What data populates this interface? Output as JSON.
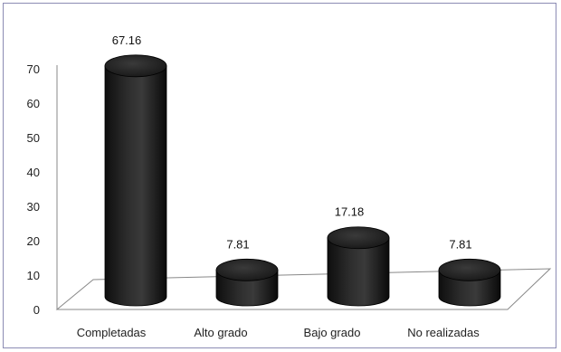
{
  "chart_data": {
    "type": "bar",
    "style": "3d-cylinder",
    "title": "",
    "xlabel": "",
    "ylabel": "",
    "categories": [
      "Completadas",
      "Alto grado",
      "Bajo grado",
      "No realizadas"
    ],
    "values": [
      67.16,
      7.81,
      17.18,
      7.81
    ],
    "data_labels": [
      "67.16",
      "7.81",
      "17.18",
      "7.81"
    ],
    "ylim": [
      0,
      70
    ],
    "yticks": [
      "0",
      "10",
      "20",
      "30",
      "40",
      "50",
      "60",
      "70"
    ],
    "grid": false,
    "legend": "none",
    "bar_color": "#1f1f1f"
  }
}
